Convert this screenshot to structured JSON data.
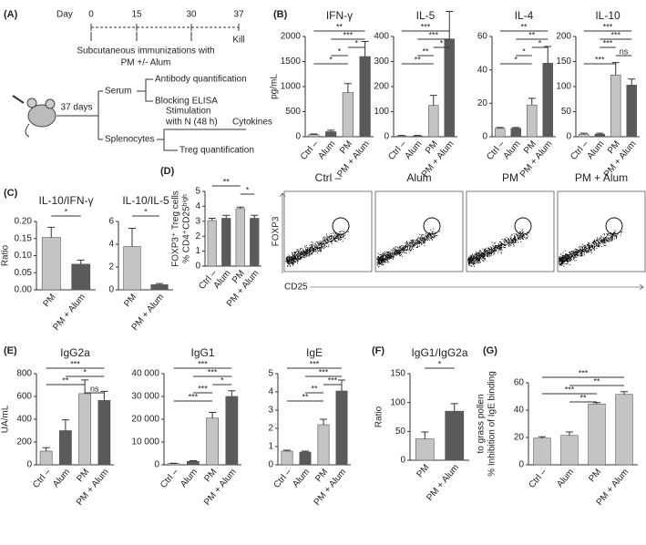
{
  "panel_labels": [
    "(A)",
    "(B)",
    "(C)",
    "(D)",
    "(E)",
    "(F)",
    "(G)"
  ],
  "schematic": {
    "day_label": "Day",
    "days": [
      "0",
      "15",
      "30",
      "37"
    ],
    "kill": "Kill",
    "immunization": [
      "Subcutaneous immunizations with",
      "PM +/- Alum"
    ],
    "duration": "37 days",
    "serum": "Serum",
    "antibody": "Antibody quantification",
    "blocking": "Blocking ELISA",
    "splenocytes": "Splenocytes",
    "stimulation": [
      "Stimulation",
      "with N (48 h)"
    ],
    "cytokines": "Cytokines",
    "treg": "Treg quantification"
  },
  "flow": {
    "titles": [
      "Ctrl –",
      "Alum",
      "PM",
      "PM + Alum"
    ],
    "xlabel": "CD25",
    "ylabel": "FOXP3"
  },
  "chart_data": [
    {
      "type": "bar",
      "title": "IFN-γ",
      "ylabel": "pg/mL",
      "categories": [
        "Ctrl –",
        "Alum",
        "PM",
        "PM + Alum"
      ],
      "values": [
        40,
        100,
        880,
        1600
      ],
      "errors": [
        15,
        30,
        180,
        300
      ],
      "colors": [
        "#c4c4c4",
        "#5a5a5a",
        "#c4c4c4",
        "#5a5a5a"
      ],
      "ylim": [
        0,
        2000
      ],
      "yticks": [
        0,
        500,
        1000,
        1500,
        2000
      ],
      "significance": [
        {
          "label": "**",
          "pair": [
            0,
            3
          ]
        },
        {
          "label": "***",
          "pair": [
            1,
            3
          ]
        },
        {
          "label": "*",
          "pair": [
            2,
            3
          ]
        },
        {
          "label": "*",
          "pair": [
            1,
            2
          ]
        },
        {
          "label": "*",
          "pair": [
            0,
            2
          ]
        }
      ]
    },
    {
      "type": "bar",
      "title": "IL-5",
      "categories": [
        "Ctrl –",
        "Alum",
        "PM",
        "PM + Alum"
      ],
      "values": [
        3,
        3,
        125,
        390
      ],
      "errors": [
        2,
        2,
        40,
        110
      ],
      "colors": [
        "#c4c4c4",
        "#5a5a5a",
        "#c4c4c4",
        "#5a5a5a"
      ],
      "ylim": [
        0,
        400
      ],
      "yticks": [
        0,
        100,
        200,
        300,
        400
      ],
      "significance": [
        {
          "label": "***",
          "pair": [
            0,
            3
          ]
        },
        {
          "label": "***",
          "pair": [
            1,
            3
          ]
        },
        {
          "label": "*",
          "pair": [
            2,
            3
          ]
        },
        {
          "label": "**",
          "pair": [
            1,
            2
          ]
        },
        {
          "label": "**",
          "pair": [
            0,
            2
          ]
        }
      ]
    },
    {
      "type": "bar",
      "title": "IL-4",
      "categories": [
        "Ctrl –",
        "Alum",
        "PM",
        "PM + Alum"
      ],
      "values": [
        5,
        5,
        19,
        44
      ],
      "errors": [
        0.5,
        0.5,
        4,
        10
      ],
      "colors": [
        "#c4c4c4",
        "#5a5a5a",
        "#c4c4c4",
        "#5a5a5a"
      ],
      "ylim": [
        0,
        60
      ],
      "yticks": [
        0,
        20,
        40,
        60
      ],
      "significance": [
        {
          "label": "**",
          "pair": [
            0,
            3
          ]
        },
        {
          "label": "**",
          "pair": [
            1,
            3
          ]
        },
        {
          "label": "*",
          "pair": [
            2,
            3
          ]
        },
        {
          "label": "*",
          "pair": [
            1,
            2
          ]
        },
        {
          "label": "*",
          "pair": [
            0,
            2
          ]
        }
      ]
    },
    {
      "type": "bar",
      "title": "IL-10",
      "categories": [
        "Ctrl –",
        "Alum",
        "PM",
        "PM + Alum"
      ],
      "values": [
        5,
        5,
        123,
        103
      ],
      "errors": [
        2,
        2,
        25,
        12
      ],
      "colors": [
        "#c4c4c4",
        "#5a5a5a",
        "#c4c4c4",
        "#5a5a5a"
      ],
      "ylim": [
        0,
        200
      ],
      "yticks": [
        0,
        50,
        100,
        150,
        200
      ],
      "significance": [
        {
          "label": "***",
          "pair": [
            0,
            3
          ]
        },
        {
          "label": "***",
          "pair": [
            1,
            3
          ]
        },
        {
          "label": "***",
          "pair": [
            1,
            2
          ]
        },
        {
          "label": "ns",
          "pair": [
            2,
            3
          ]
        },
        {
          "label": "***",
          "pair": [
            0,
            2
          ]
        }
      ]
    },
    {
      "type": "bar",
      "title": "IL-10/IFN-γ",
      "ylabel": "Ratio",
      "categories": [
        "PM",
        "PM + Alum"
      ],
      "values": [
        0.153,
        0.075
      ],
      "errors": [
        0.03,
        0.012
      ],
      "colors": [
        "#c4c4c4",
        "#5a5a5a"
      ],
      "ylim": [
        0,
        0.2
      ],
      "yticks": [
        {
          "value": 0,
          "label": "0.00"
        },
        {
          "value": 0.05,
          "label": "0.05"
        },
        {
          "value": 0.1,
          "label": "0.10"
        },
        {
          "value": 0.15,
          "label": "0.15"
        },
        {
          "value": 0.2,
          "label": "0.20"
        }
      ],
      "significance": [
        {
          "label": "*",
          "pair": [
            0,
            1
          ]
        }
      ]
    },
    {
      "type": "bar",
      "title": "IL-10/IL-5",
      "categories": [
        "PM",
        "PM + Alum"
      ],
      "values": [
        3.8,
        0.45
      ],
      "errors": [
        1.6,
        0.1
      ],
      "colors": [
        "#c4c4c4",
        "#5a5a5a"
      ],
      "ylim": [
        0,
        6
      ],
      "yticks": [
        0,
        2,
        4,
        6
      ],
      "significance": [
        {
          "label": "*",
          "pair": [
            0,
            1
          ]
        }
      ]
    },
    {
      "type": "bar",
      "ylabel": [
        "% CD4⁺CD25ʰⁱᵍʰ",
        "FOXP3⁺ Treg cells"
      ],
      "categories": [
        "Ctrl –",
        "Alum",
        "PM",
        "PM + Alum"
      ],
      "values": [
        3.05,
        3.2,
        3.85,
        3.2
      ],
      "errors": [
        0.15,
        0.2,
        0.1,
        0.2
      ],
      "colors": [
        "#c4c4c4",
        "#5a5a5a",
        "#c4c4c4",
        "#5a5a5a"
      ],
      "ylim": [
        0,
        5
      ],
      "yticks": [
        0,
        1,
        2,
        3,
        4,
        5
      ],
      "significance": [
        {
          "label": "**",
          "pair": [
            0,
            2
          ]
        },
        {
          "label": "*",
          "pair": [
            2,
            3
          ]
        }
      ]
    },
    {
      "type": "bar",
      "title": "IgG2a",
      "ylabel": "UA/mL",
      "categories": [
        "Ctrl –",
        "Alum",
        "PM",
        "PM + Alum"
      ],
      "values": [
        120,
        300,
        625,
        565
      ],
      "errors": [
        30,
        95,
        120,
        80
      ],
      "colors": [
        "#c4c4c4",
        "#5a5a5a",
        "#c4c4c4",
        "#5a5a5a"
      ],
      "ylim": [
        0,
        800
      ],
      "yticks": [
        0,
        200,
        400,
        600,
        800
      ],
      "significance": [
        {
          "label": "***",
          "pair": [
            0,
            3
          ]
        },
        {
          "label": "*",
          "pair": [
            1,
            3
          ]
        },
        {
          "label": "**",
          "pair": [
            0,
            2
          ]
        },
        {
          "label": "ns",
          "pair": [
            2,
            3
          ]
        }
      ]
    },
    {
      "type": "bar",
      "title": "IgG1",
      "categories": [
        "Ctrl –",
        "Alum",
        "PM",
        "PM + Alum"
      ],
      "values": [
        500,
        1500,
        20500,
        30000
      ],
      "errors": [
        200,
        300,
        2500,
        2500
      ],
      "colors": [
        "#c4c4c4",
        "#5a5a5a",
        "#c4c4c4",
        "#5a5a5a"
      ],
      "ylim": [
        0,
        40000
      ],
      "yticks": [
        0,
        {
          "value": 10000,
          "label": "10 000"
        },
        {
          "value": 20000,
          "label": "20 000"
        },
        {
          "value": 30000,
          "label": "30 000"
        },
        {
          "value": 40000,
          "label": "40 000"
        }
      ],
      "significance": [
        {
          "label": "***",
          "pair": [
            0,
            3
          ]
        },
        {
          "label": "***",
          "pair": [
            1,
            3
          ]
        },
        {
          "label": "*",
          "pair": [
            2,
            3
          ]
        },
        {
          "label": "***",
          "pair": [
            1,
            2
          ]
        },
        {
          "label": "***",
          "pair": [
            0,
            2
          ]
        }
      ]
    },
    {
      "type": "bar",
      "title": "IgE",
      "categories": [
        "Ctrl –",
        "Alum",
        "PM",
        "PM + Alum"
      ],
      "values": [
        0.75,
        0.7,
        2.2,
        4.05
      ],
      "errors": [
        0.05,
        0.05,
        0.3,
        0.6
      ],
      "colors": [
        "#c4c4c4",
        "#5a5a5a",
        "#c4c4c4",
        "#5a5a5a"
      ],
      "ylim": [
        0,
        5
      ],
      "yticks": [
        0,
        1,
        2,
        3,
        4,
        5
      ],
      "significance": [
        {
          "label": "***",
          "pair": [
            0,
            3
          ]
        },
        {
          "label": "***",
          "pair": [
            1,
            3
          ]
        },
        {
          "label": "***",
          "pair": [
            2,
            3
          ]
        },
        {
          "label": "**",
          "pair": [
            1,
            2
          ]
        },
        {
          "label": "**",
          "pair": [
            0,
            2
          ]
        }
      ]
    },
    {
      "type": "bar",
      "title": "IgG1/IgG2a",
      "ylabel": "Ratio",
      "categories": [
        "PM",
        "PM + Alum"
      ],
      "values": [
        37,
        85
      ],
      "errors": [
        12,
        13
      ],
      "colors": [
        "#c4c4c4",
        "#5a5a5a"
      ],
      "ylim": [
        0,
        150
      ],
      "yticks": [
        0,
        50,
        100,
        150
      ],
      "significance": [
        {
          "label": "*",
          "pair": [
            0,
            1
          ]
        }
      ]
    },
    {
      "type": "bar",
      "ylabel": [
        "% Inhibition of IgE binding",
        "to grass pollen"
      ],
      "categories": [
        "Ctrl –",
        "Alum",
        "PM",
        "PM + Alum"
      ],
      "values": [
        19.5,
        21.5,
        44.5,
        51.5
      ],
      "errors": [
        1,
        2.5,
        1,
        2
      ],
      "colors": [
        "#c4c4c4",
        "#c4c4c4",
        "#c4c4c4",
        "#c4c4c4"
      ],
      "ylim": [
        0,
        60
      ],
      "yticks": [
        0,
        20,
        40,
        60
      ],
      "significance": [
        {
          "label": "***",
          "pair": [
            0,
            3
          ]
        },
        {
          "label": "**",
          "pair": [
            1,
            3
          ]
        },
        {
          "label": "***",
          "pair": [
            0,
            2
          ]
        },
        {
          "label": "**",
          "pair": [
            1,
            2
          ]
        }
      ]
    }
  ]
}
